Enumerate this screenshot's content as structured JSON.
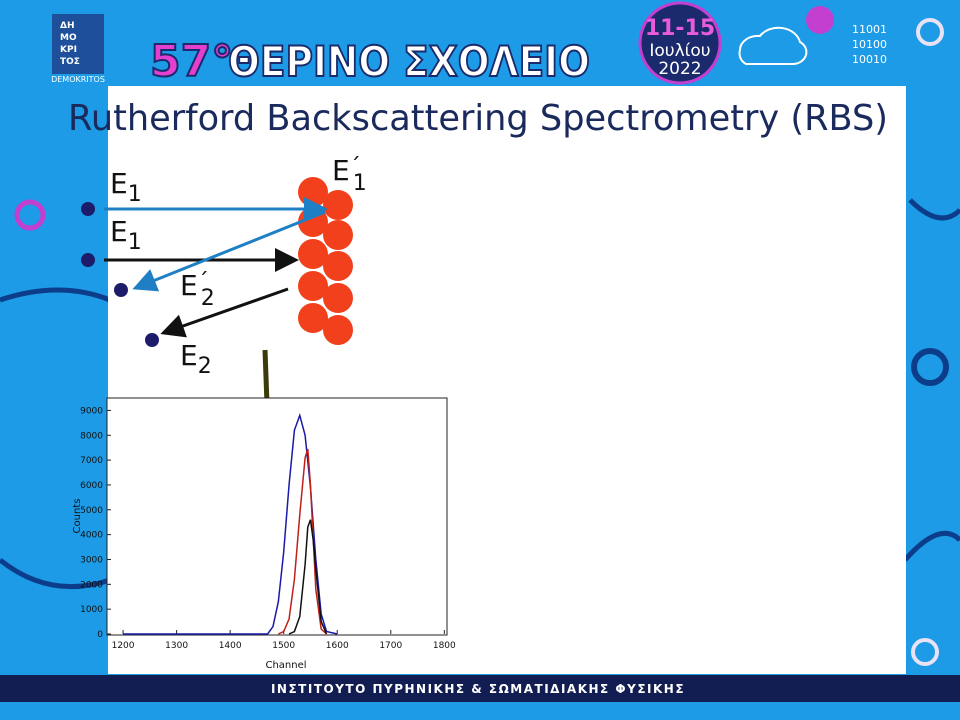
{
  "header": {
    "logo": {
      "lines": [
        "ΔΗ",
        "ΜΟ",
        "ΚΡΙ",
        "ΤΟΣ"
      ],
      "caption": "DEMOKRITOS"
    },
    "school_number": "57°",
    "school_name": "ΘΕΡΙΝΟ ΣΧΟΛΕΙΟ",
    "dates": {
      "days": "11-15",
      "month": "Ιουλίου",
      "year": "2022"
    },
    "binary": [
      "11001",
      "10100",
      "10010"
    ]
  },
  "slide": {
    "title": "Rutherford Backscattering Spectrometry (RBS)"
  },
  "diagram": {
    "labels": [
      {
        "letter": "E",
        "sub": "1"
      },
      {
        "letter": "E",
        "sub": "1"
      },
      {
        "letter": "E",
        "prime": "´",
        "sub": "1"
      },
      {
        "letter": "E",
        "prime": "´",
        "sub": "2"
      },
      {
        "letter": "E",
        "sub": "2"
      }
    ]
  },
  "chart_data": {
    "type": "line",
    "x_label": "Channel",
    "y_label": "Counts",
    "xlim": [
      1170,
      1805
    ],
    "ylim": [
      0,
      9500
    ],
    "xticks": [
      1200,
      1300,
      1400,
      1500,
      1600,
      1700,
      1800
    ],
    "yticks": [
      0,
      1000,
      2000,
      3000,
      4000,
      5000,
      6000,
      7000,
      8000,
      9000
    ],
    "series": [
      {
        "color": "#1a1aa8",
        "x": [
          1200,
          1470,
          1480,
          1490,
          1500,
          1510,
          1520,
          1530,
          1540,
          1550,
          1560,
          1570,
          1580,
          1600
        ],
        "values": [
          0,
          0,
          300,
          1300,
          3300,
          6000,
          8200,
          8800,
          8000,
          5900,
          3000,
          800,
          100,
          0
        ]
      },
      {
        "color": "#c0201a",
        "x": [
          1490,
          1500,
          1510,
          1520,
          1530,
          1540,
          1545,
          1550,
          1560,
          1570,
          1580
        ],
        "values": [
          0,
          100,
          600,
          2200,
          4800,
          7100,
          7450,
          6000,
          1800,
          200,
          0
        ]
      },
      {
        "color": "#111111",
        "x": [
          1510,
          1520,
          1530,
          1540,
          1545,
          1550,
          1555,
          1560,
          1570,
          1580
        ],
        "values": [
          0,
          100,
          700,
          2800,
          4300,
          4600,
          3800,
          2600,
          500,
          0
        ]
      }
    ]
  },
  "footer": {
    "institute": "ΙΝΣΤΙΤΟΥΤΟ ΠΥΡΗΝΙΚΗΣ & ΣΩΜΑΤΙΔΙΑΚΗΣ ΦΥΣΙΚΗΣ"
  }
}
